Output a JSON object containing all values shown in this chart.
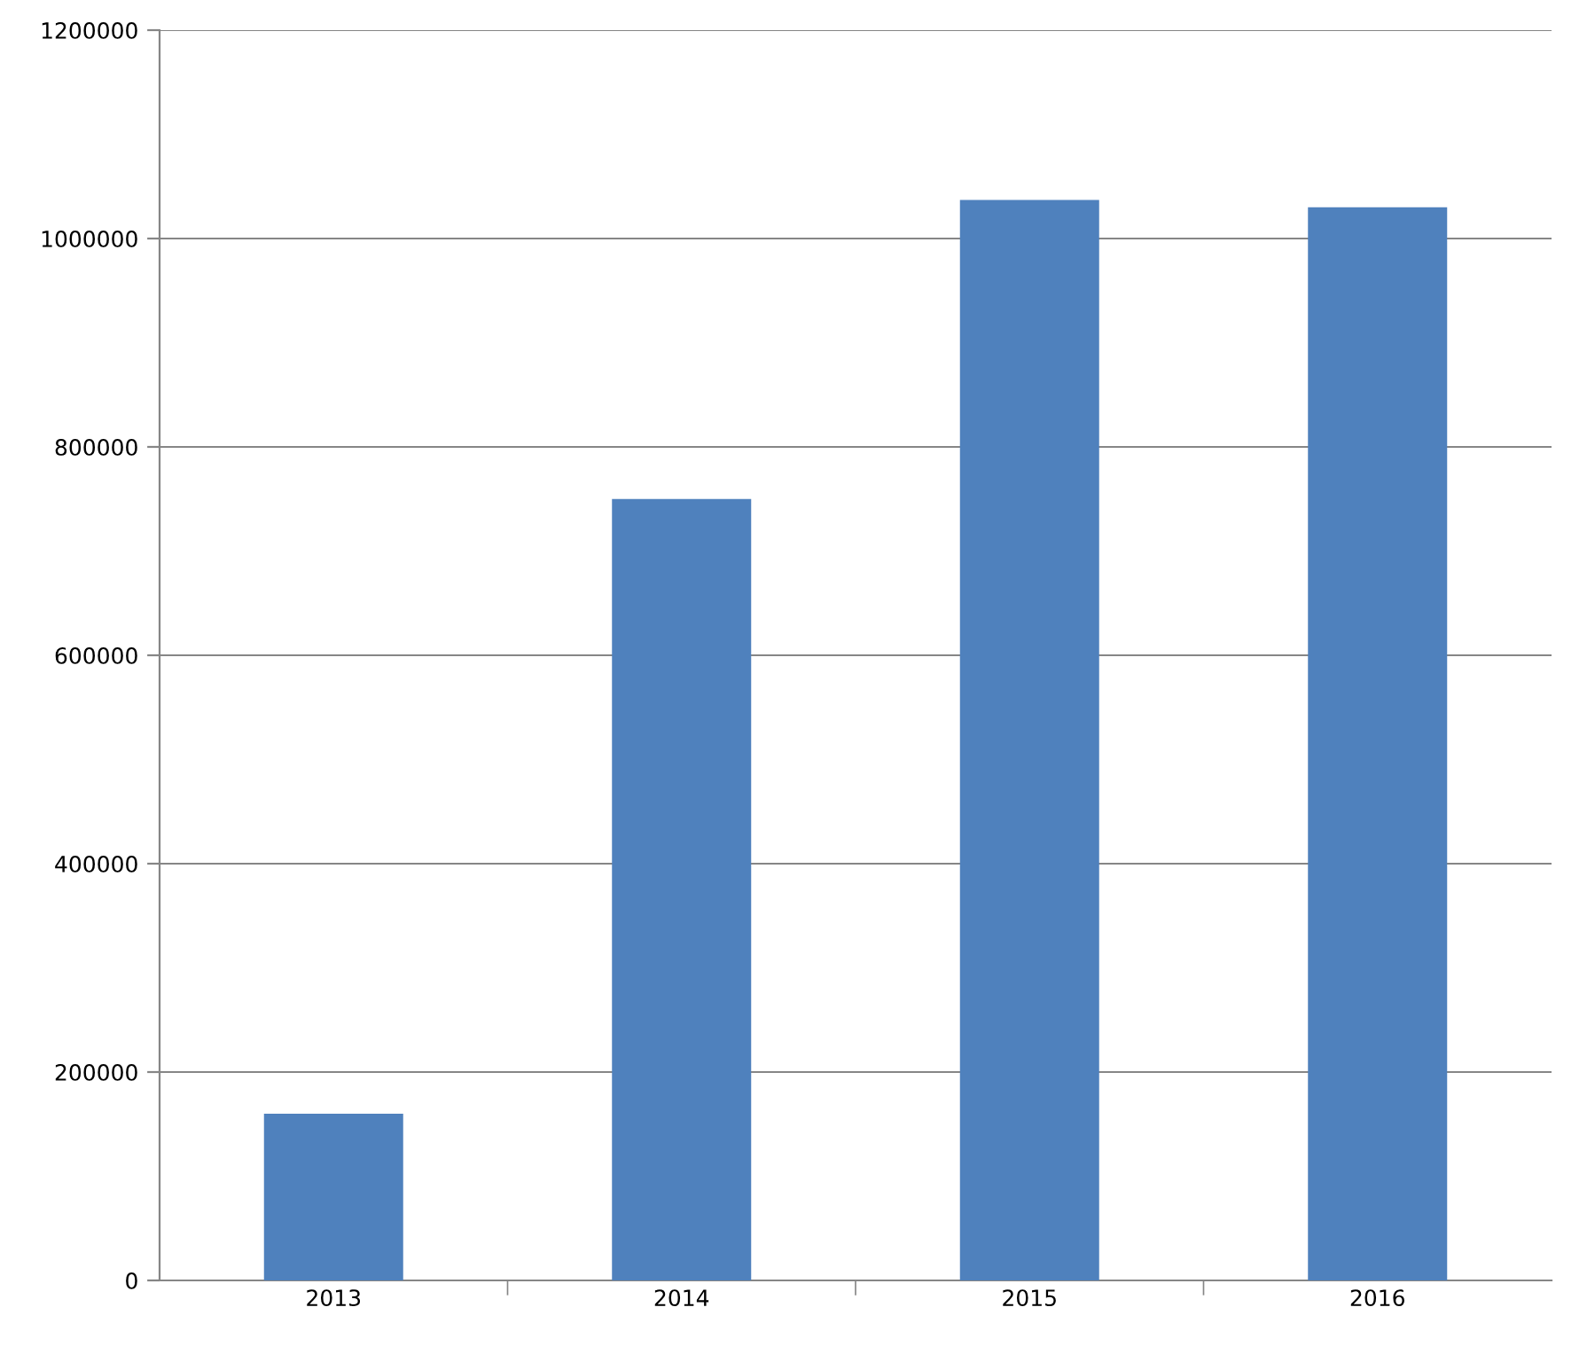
{
  "chart_data": {
    "type": "bar",
    "categories": [
      "2013",
      "2014",
      "2015",
      "2016"
    ],
    "values": [
      160000,
      750000,
      1037000,
      1030000
    ],
    "color": "#4f81bd",
    "ylim": [
      0,
      1200000
    ],
    "yticks": [
      0,
      200000,
      400000,
      600000,
      800000,
      1000000,
      1200000
    ],
    "grid": "y"
  }
}
